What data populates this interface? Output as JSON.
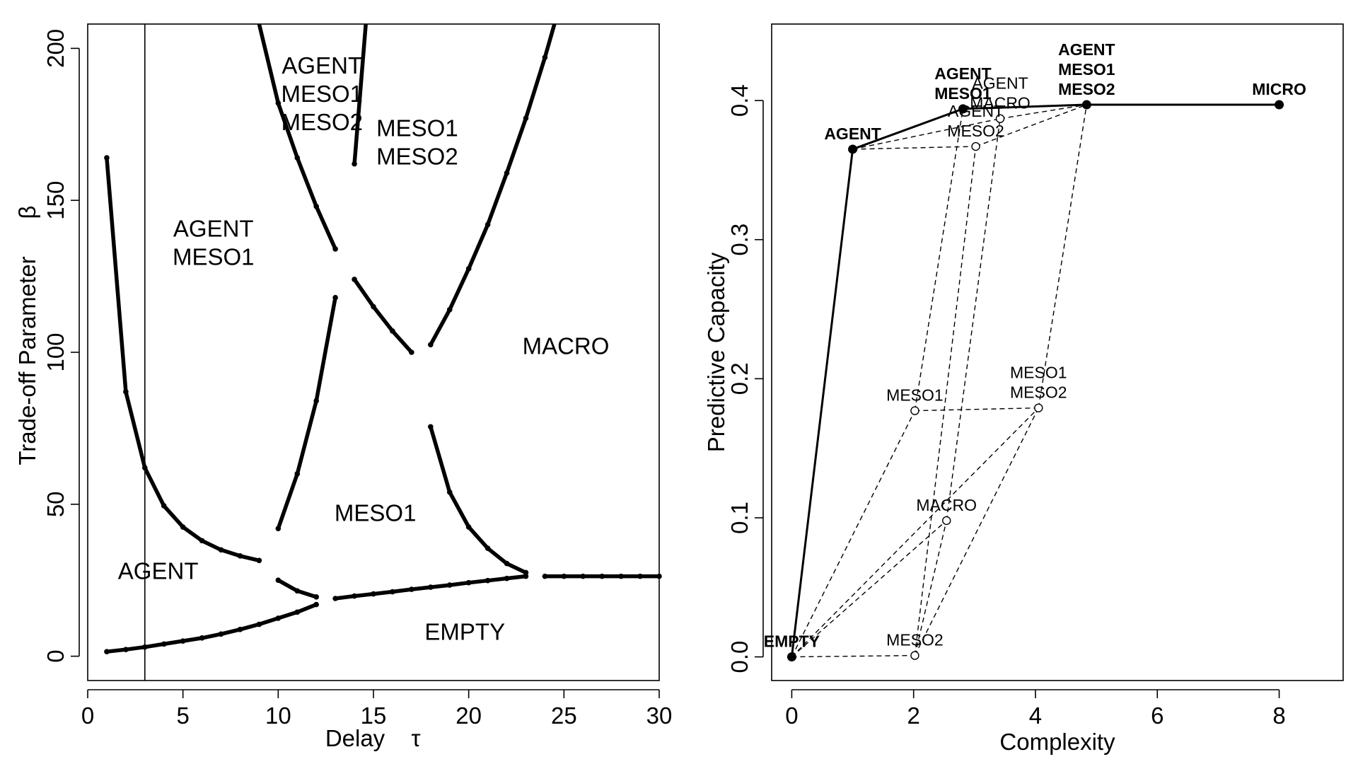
{
  "chart_data": [
    {
      "type": "line",
      "xlabel": "Delay",
      "xlabel_symbol": "τ",
      "ylabel": "Trade-off Parameter",
      "ylabel_symbol": "β",
      "xlim": [
        0,
        30
      ],
      "ylim": [
        -8,
        208
      ],
      "xticks": [
        0,
        5,
        10,
        15,
        20,
        25,
        30
      ],
      "yticks": [
        0,
        50,
        100,
        150,
        200
      ],
      "vline_x": 3,
      "series": [
        {
          "x": [
            1,
            2,
            3,
            4,
            5,
            6,
            7,
            8,
            9
          ],
          "y": [
            164,
            87,
            62,
            49.5,
            42.5,
            38,
            35,
            33,
            31.5
          ]
        },
        {
          "x": [
            1,
            2,
            3,
            4,
            5,
            6,
            7,
            8,
            9,
            10,
            11,
            12
          ],
          "y": [
            1.5,
            2.2,
            3,
            4,
            5,
            6,
            7.3,
            8.8,
            10.5,
            12.5,
            14.5,
            17
          ]
        },
        {
          "x": [
            10,
            11,
            12
          ],
          "y": [
            25,
            21.5,
            19.5
          ]
        },
        {
          "x": [
            13,
            14,
            15,
            16,
            17,
            18,
            19,
            20,
            21,
            22,
            23
          ],
          "y": [
            19,
            19.8,
            20.5,
            21.2,
            22,
            22.7,
            23.4,
            24.2,
            24.9,
            25.6,
            26.3
          ]
        },
        {
          "x": [
            24,
            25,
            26,
            27,
            28,
            29,
            30
          ],
          "y": [
            26.3,
            26.3,
            26.3,
            26.3,
            26.3,
            26.3,
            26.3
          ]
        },
        {
          "x": [
            10,
            11,
            12,
            13
          ],
          "y": [
            42,
            60,
            84,
            118
          ]
        },
        {
          "x": [
            9,
            10,
            11,
            12,
            13
          ],
          "y": [
            208,
            182,
            164,
            148,
            134
          ]
        },
        {
          "x": [
            14,
            15,
            16,
            17
          ],
          "y": [
            124,
            115,
            107,
            100
          ]
        },
        {
          "x": [
            14,
            14.6
          ],
          "y": [
            162,
            208
          ]
        },
        {
          "x": [
            18,
            19,
            20,
            21,
            22,
            23
          ],
          "y": [
            75.5,
            54,
            42.5,
            35.5,
            30.5,
            27.5
          ]
        },
        {
          "x": [
            18,
            19,
            20,
            21,
            22,
            23,
            24,
            24.5
          ],
          "y": [
            102.5,
            114,
            127.5,
            142,
            159,
            177,
            197,
            208
          ]
        }
      ],
      "regions": [
        {
          "lines": [
            "AGENT"
          ],
          "x": 3.7,
          "y": 28
        },
        {
          "lines": [
            "AGENT",
            "MESO1"
          ],
          "x": 6.6,
          "y": 136
        },
        {
          "lines": [
            "AGENT",
            "MESO1",
            "MESO2"
          ],
          "x": 12.3,
          "y": 185
        },
        {
          "lines": [
            "MESO1",
            "MESO2"
          ],
          "x": 17.3,
          "y": 169
        },
        {
          "lines": [
            "MESO1"
          ],
          "x": 15.1,
          "y": 47
        },
        {
          "lines": [
            "MACRO"
          ],
          "x": 25.1,
          "y": 102
        },
        {
          "lines": [
            "EMPTY"
          ],
          "x": 19.8,
          "y": 8
        }
      ]
    },
    {
      "type": "scatter",
      "xlabel": "Complexity",
      "ylabel": "Predictive Capacity",
      "xlim": [
        -0.33,
        9.05
      ],
      "ylim": [
        -0.017,
        0.455
      ],
      "xticks": [
        0,
        2,
        4,
        6,
        8
      ],
      "yticks": [
        "0.0",
        "0.1",
        "0.2",
        "0.3",
        "0.4"
      ],
      "frontier": [
        {
          "x": 0,
          "y": 0,
          "label": [
            "EMPTY"
          ]
        },
        {
          "x": 1,
          "y": 0.365,
          "label": [
            "AGENT"
          ]
        },
        {
          "x": 2.81,
          "y": 0.394,
          "label": [
            "AGENT",
            "MESO1"
          ]
        },
        {
          "x": 4.84,
          "y": 0.397,
          "label": [
            "AGENT",
            "MESO1",
            "MESO2"
          ]
        },
        {
          "x": 8,
          "y": 0.397,
          "label": [
            "MICRO"
          ]
        }
      ],
      "lattice": [
        {
          "x": 2.02,
          "y": 0.001,
          "label": [
            "MESO2"
          ]
        },
        {
          "x": 2.02,
          "y": 0.177,
          "label": [
            "MESO1"
          ]
        },
        {
          "x": 2.54,
          "y": 0.098,
          "label": [
            "MACRO"
          ]
        },
        {
          "x": 4.05,
          "y": 0.179,
          "label": [
            "MESO1",
            "MESO2"
          ]
        },
        {
          "x": 3.02,
          "y": 0.367,
          "label": [
            "AGENT",
            "MESO2"
          ]
        },
        {
          "x": 3.42,
          "y": 0.387,
          "label": [
            "AGENT",
            "MACRO"
          ]
        }
      ]
    }
  ]
}
